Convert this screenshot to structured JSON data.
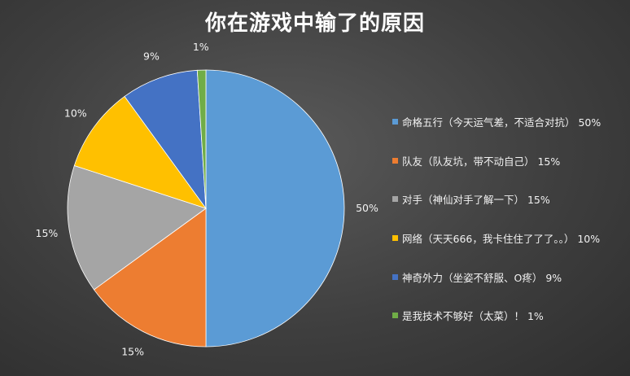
{
  "title": "你在游戏中输了的原因",
  "chart_data": {
    "type": "pie",
    "title": "你在游戏中输了的原因",
    "legend_position": "right",
    "slices": [
      {
        "label": "命格五行（今天运气差，不适合对抗）",
        "value": 50,
        "data_label": "50%",
        "color": "#5b9bd5"
      },
      {
        "label": "队友（队友坑，带不动自己）",
        "value": 15,
        "data_label": "15%",
        "color": "#ed7d31"
      },
      {
        "label": "对手（神仙对手了解一下）",
        "value": 15,
        "data_label": "15%",
        "color": "#a5a5a5"
      },
      {
        "label": "网络（天天666，我卡住住了了了。。）",
        "value": 10,
        "data_label": "10%",
        "color": "#ffc000"
      },
      {
        "label": "神奇外力（坐姿不舒服、O疼）",
        "value": 9,
        "data_label": "9%",
        "color": "#4472c4"
      },
      {
        "label": "是我技术不够好（太菜）！",
        "value": 1,
        "data_label": "1%",
        "color": "#70ad47"
      }
    ]
  },
  "legend": [
    {
      "text": "命格五行（今天运气差，不适合对抗） 50%"
    },
    {
      "text": "队友（队友坑，带不动自己） 15%"
    },
    {
      "text": "对手（神仙对手了解一下） 15%"
    },
    {
      "text": "网络（天天666，我卡住住了了了。。） 10%"
    },
    {
      "text": "神奇外力（坐姿不舒服、O疼） 9%"
    },
    {
      "text": "是我技术不够好（太菜）！ 1%"
    }
  ]
}
